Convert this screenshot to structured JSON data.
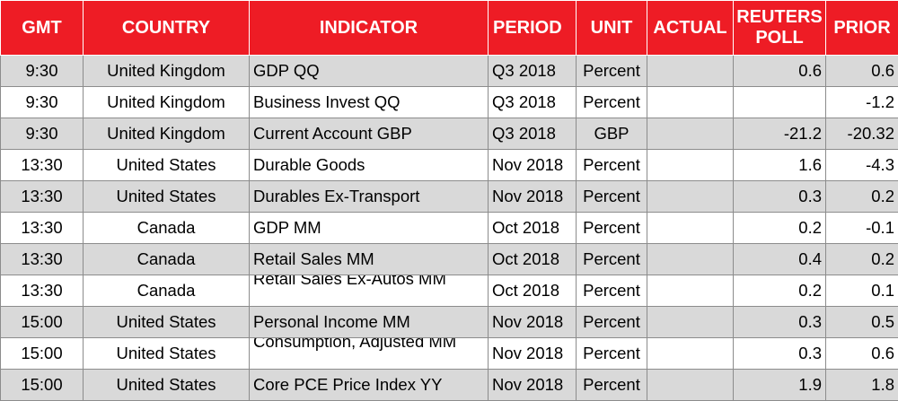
{
  "header": {
    "gmt": "GMT",
    "country": "COUNTRY",
    "indicator": "INDICATOR",
    "period": "PERIOD",
    "unit": "UNIT",
    "actual": "ACTUAL",
    "reuters_poll": "REUTERS POLL",
    "prior": "PRIOR"
  },
  "rows": [
    {
      "gmt": "9:30",
      "country": "United Kingdom",
      "indicator": "GDP QQ",
      "period": "Q3 2018",
      "unit": "Percent",
      "actual": "",
      "poll": "0.6",
      "prior": "0.6"
    },
    {
      "gmt": "9:30",
      "country": "United Kingdom",
      "indicator": "Business Invest QQ",
      "period": "Q3 2018",
      "unit": "Percent",
      "actual": "",
      "poll": "",
      "prior": "-1.2"
    },
    {
      "gmt": "9:30",
      "country": "United Kingdom",
      "indicator": "Current Account GBP",
      "period": "Q3 2018",
      "unit": "GBP",
      "actual": "",
      "poll": "-21.2",
      "prior": "-20.32"
    },
    {
      "gmt": "13:30",
      "country": "United States",
      "indicator": "Durable Goods",
      "period": "Nov 2018",
      "unit": "Percent",
      "actual": "",
      "poll": "1.6",
      "prior": "-4.3"
    },
    {
      "gmt": "13:30",
      "country": "United States",
      "indicator": "Durables Ex-Transport",
      "period": "Nov 2018",
      "unit": "Percent",
      "actual": "",
      "poll": "0.3",
      "prior": "0.2"
    },
    {
      "gmt": "13:30",
      "country": "Canada",
      "indicator": "GDP MM",
      "period": "Oct 2018",
      "unit": "Percent",
      "actual": "",
      "poll": "0.2",
      "prior": "-0.1"
    },
    {
      "gmt": "13:30",
      "country": "Canada",
      "indicator": "Retail Sales MM",
      "period": "Oct 2018",
      "unit": "Percent",
      "actual": "",
      "poll": "0.4",
      "prior": "0.2"
    },
    {
      "gmt": "13:30",
      "country": "Canada",
      "indicator": "Retail Sales Ex-Autos MM",
      "period": "Oct 2018",
      "unit": "Percent",
      "actual": "",
      "poll": "0.2",
      "prior": "0.1"
    },
    {
      "gmt": "15:00",
      "country": "United States",
      "indicator": "Personal Income MM",
      "period": "Nov 2018",
      "unit": "Percent",
      "actual": "",
      "poll": "0.3",
      "prior": "0.5"
    },
    {
      "gmt": "15:00",
      "country": "United States",
      "indicator": "Consumption, Adjusted MM",
      "period": "Nov 2018",
      "unit": "Percent",
      "actual": "",
      "poll": "0.3",
      "prior": "0.6"
    },
    {
      "gmt": "15:00",
      "country": "United States",
      "indicator": "Core PCE Price Index YY",
      "period": "Nov 2018",
      "unit": "Percent",
      "actual": "",
      "poll": "1.9",
      "prior": "1.8"
    }
  ]
}
